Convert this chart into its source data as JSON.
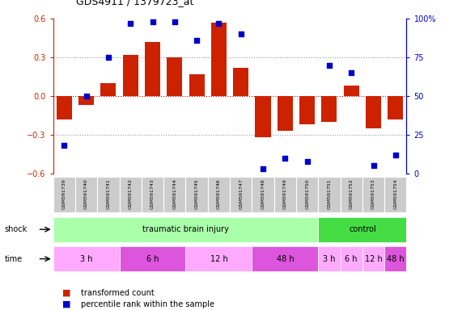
{
  "title": "GDS4911 / 1379723_at",
  "samples": [
    "GSM591739",
    "GSM591740",
    "GSM591741",
    "GSM591742",
    "GSM591743",
    "GSM591744",
    "GSM591745",
    "GSM591746",
    "GSM591747",
    "GSM591748",
    "GSM591749",
    "GSM591750",
    "GSM591751",
    "GSM591752",
    "GSM591753",
    "GSM591754"
  ],
  "bar_values": [
    -0.18,
    -0.07,
    0.1,
    0.32,
    0.42,
    0.3,
    0.17,
    0.57,
    0.22,
    -0.32,
    -0.27,
    -0.22,
    -0.2,
    0.08,
    -0.25,
    -0.18
  ],
  "blue_values": [
    18,
    50,
    75,
    97,
    98,
    98,
    86,
    97,
    90,
    3,
    10,
    8,
    70,
    65,
    5,
    12
  ],
  "bar_color": "#cc2200",
  "blue_color": "#0000cc",
  "ylim_left": [
    -0.6,
    0.6
  ],
  "ylim_right": [
    0,
    100
  ],
  "yticks_left": [
    -0.6,
    -0.3,
    0.0,
    0.3,
    0.6
  ],
  "yticks_right": [
    0,
    25,
    50,
    75,
    100
  ],
  "ytick_labels_right": [
    "0",
    "25",
    "50",
    "75",
    "100%"
  ],
  "shock_groups": [
    {
      "label": "traumatic brain injury",
      "start": 0,
      "end": 11,
      "color": "#aaffaa"
    },
    {
      "label": "control",
      "start": 12,
      "end": 15,
      "color": "#44dd44"
    }
  ],
  "time_groups": [
    {
      "label": "3 h",
      "start": 0,
      "end": 2,
      "color": "#ffaaff"
    },
    {
      "label": "6 h",
      "start": 3,
      "end": 5,
      "color": "#dd55dd"
    },
    {
      "label": "12 h",
      "start": 6,
      "end": 8,
      "color": "#ffaaff"
    },
    {
      "label": "48 h",
      "start": 9,
      "end": 11,
      "color": "#dd55dd"
    },
    {
      "label": "3 h",
      "start": 12,
      "end": 12,
      "color": "#ffaaff"
    },
    {
      "label": "6 h",
      "start": 13,
      "end": 13,
      "color": "#ffaaff"
    },
    {
      "label": "12 h",
      "start": 14,
      "end": 14,
      "color": "#ffaaff"
    },
    {
      "label": "48 h",
      "start": 15,
      "end": 15,
      "color": "#dd55dd"
    }
  ],
  "shock_label": "shock",
  "time_label": "time",
  "legend_bar": "transformed count",
  "legend_blue": "percentile rank within the sample",
  "bg_color": "#ffffff",
  "plot_bg": "#ffffff",
  "tick_color_left": "#cc2200",
  "tick_color_right": "#0000cc",
  "sample_box_color": "#cccccc",
  "n_samples": 16
}
